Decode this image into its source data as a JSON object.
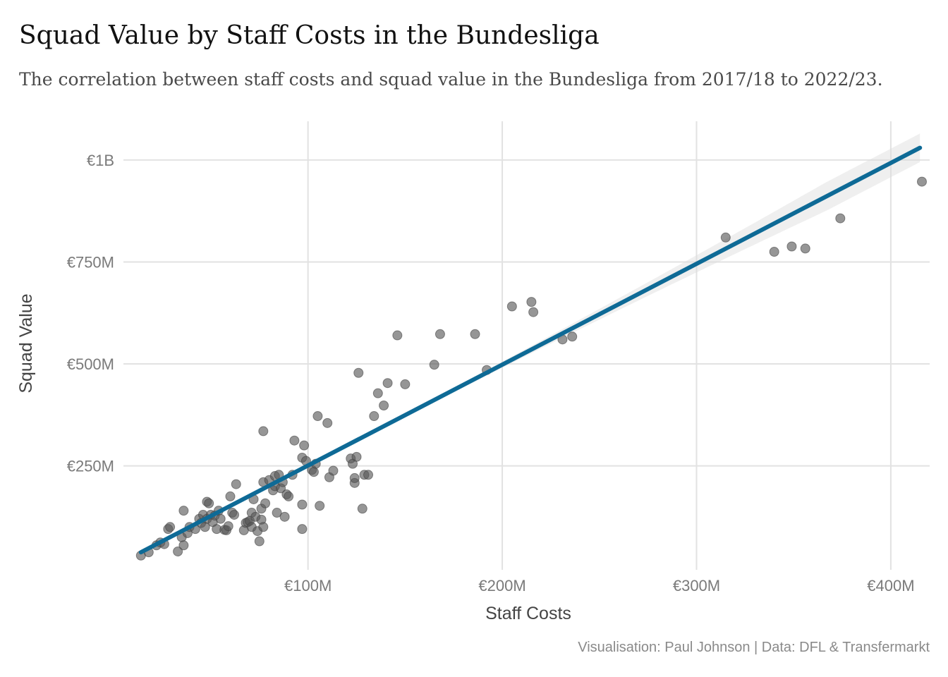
{
  "chart_data": {
    "type": "scatter",
    "title": "Squad Value by Staff Costs in the Bundesliga",
    "subtitle": "The correlation between staff costs and squad value in the Bundesliga from 2017/18 to 2022/23.",
    "caption": "Visualisation: Paul Johnson | Data: DFL & Transfermarkt",
    "xlabel": "Staff Costs",
    "ylabel": "Squad Value",
    "units": "millions EUR",
    "xlim": [
      5,
      420
    ],
    "ylim": [
      -5,
      1095
    ],
    "x_ticks": [
      {
        "value": 100,
        "label": "€100M"
      },
      {
        "value": 200,
        "label": "€200M"
      },
      {
        "value": 300,
        "label": "€300M"
      },
      {
        "value": 400,
        "label": "€400M"
      }
    ],
    "y_ticks": [
      {
        "value": 250,
        "label": "€250M"
      },
      {
        "value": 500,
        "label": "€500M"
      },
      {
        "value": 750,
        "label": "€750M"
      },
      {
        "value": 1000,
        "label": "€1B"
      }
    ],
    "trend_line": {
      "x": [
        14,
        415
      ],
      "y": [
        38,
        1030
      ],
      "color": "#0e6a96",
      "ci_color": "#dcdcdc"
    },
    "points": [
      {
        "x": 14,
        "y": 30
      },
      {
        "x": 18,
        "y": 38
      },
      {
        "x": 22,
        "y": 55
      },
      {
        "x": 24,
        "y": 62
      },
      {
        "x": 26,
        "y": 58
      },
      {
        "x": 28,
        "y": 95
      },
      {
        "x": 29,
        "y": 100
      },
      {
        "x": 33,
        "y": 40
      },
      {
        "x": 35,
        "y": 75
      },
      {
        "x": 36,
        "y": 55
      },
      {
        "x": 36,
        "y": 140
      },
      {
        "x": 38,
        "y": 85
      },
      {
        "x": 39,
        "y": 100
      },
      {
        "x": 42,
        "y": 95
      },
      {
        "x": 44,
        "y": 120
      },
      {
        "x": 45,
        "y": 110
      },
      {
        "x": 46,
        "y": 130
      },
      {
        "x": 47,
        "y": 100
      },
      {
        "x": 48,
        "y": 120
      },
      {
        "x": 48,
        "y": 162
      },
      {
        "x": 49,
        "y": 158
      },
      {
        "x": 50,
        "y": 130
      },
      {
        "x": 51,
        "y": 112
      },
      {
        "x": 52,
        "y": 128
      },
      {
        "x": 53,
        "y": 95
      },
      {
        "x": 54,
        "y": 140
      },
      {
        "x": 55,
        "y": 120
      },
      {
        "x": 57,
        "y": 93
      },
      {
        "x": 58,
        "y": 92
      },
      {
        "x": 59,
        "y": 102
      },
      {
        "x": 60,
        "y": 175
      },
      {
        "x": 61,
        "y": 135
      },
      {
        "x": 62,
        "y": 130
      },
      {
        "x": 63,
        "y": 205
      },
      {
        "x": 67,
        "y": 92
      },
      {
        "x": 68,
        "y": 110
      },
      {
        "x": 69,
        "y": 112
      },
      {
        "x": 70,
        "y": 115
      },
      {
        "x": 71,
        "y": 100
      },
      {
        "x": 71,
        "y": 135
      },
      {
        "x": 72,
        "y": 168
      },
      {
        "x": 73,
        "y": 125
      },
      {
        "x": 74,
        "y": 90
      },
      {
        "x": 75,
        "y": 65
      },
      {
        "x": 76,
        "y": 145
      },
      {
        "x": 76,
        "y": 118
      },
      {
        "x": 77,
        "y": 100
      },
      {
        "x": 77,
        "y": 210
      },
      {
        "x": 77,
        "y": 335
      },
      {
        "x": 78,
        "y": 158
      },
      {
        "x": 80,
        "y": 215
      },
      {
        "x": 82,
        "y": 190
      },
      {
        "x": 83,
        "y": 200
      },
      {
        "x": 83,
        "y": 225
      },
      {
        "x": 84,
        "y": 135
      },
      {
        "x": 85,
        "y": 228
      },
      {
        "x": 86,
        "y": 195
      },
      {
        "x": 87,
        "y": 210
      },
      {
        "x": 88,
        "y": 125
      },
      {
        "x": 89,
        "y": 180
      },
      {
        "x": 90,
        "y": 175
      },
      {
        "x": 92,
        "y": 228
      },
      {
        "x": 93,
        "y": 312
      },
      {
        "x": 97,
        "y": 95
      },
      {
        "x": 97,
        "y": 155
      },
      {
        "x": 97,
        "y": 270
      },
      {
        "x": 98,
        "y": 300
      },
      {
        "x": 99,
        "y": 262
      },
      {
        "x": 102,
        "y": 240
      },
      {
        "x": 103,
        "y": 235
      },
      {
        "x": 104,
        "y": 255
      },
      {
        "x": 105,
        "y": 372
      },
      {
        "x": 106,
        "y": 152
      },
      {
        "x": 110,
        "y": 355
      },
      {
        "x": 111,
        "y": 222
      },
      {
        "x": 113,
        "y": 238
      },
      {
        "x": 122,
        "y": 268
      },
      {
        "x": 123,
        "y": 255
      },
      {
        "x": 124,
        "y": 208
      },
      {
        "x": 124,
        "y": 220
      },
      {
        "x": 125,
        "y": 272
      },
      {
        "x": 126,
        "y": 478
      },
      {
        "x": 128,
        "y": 145
      },
      {
        "x": 129,
        "y": 228
      },
      {
        "x": 131,
        "y": 228
      },
      {
        "x": 134,
        "y": 372
      },
      {
        "x": 136,
        "y": 428
      },
      {
        "x": 139,
        "y": 398
      },
      {
        "x": 141,
        "y": 453
      },
      {
        "x": 146,
        "y": 570
      },
      {
        "x": 150,
        "y": 450
      },
      {
        "x": 165,
        "y": 498
      },
      {
        "x": 168,
        "y": 573
      },
      {
        "x": 186,
        "y": 573
      },
      {
        "x": 192,
        "y": 485
      },
      {
        "x": 205,
        "y": 641
      },
      {
        "x": 215,
        "y": 652
      },
      {
        "x": 216,
        "y": 627
      },
      {
        "x": 231,
        "y": 560
      },
      {
        "x": 236,
        "y": 567
      },
      {
        "x": 315,
        "y": 810
      },
      {
        "x": 340,
        "y": 775
      },
      {
        "x": 349,
        "y": 788
      },
      {
        "x": 356,
        "y": 783
      },
      {
        "x": 374,
        "y": 857
      },
      {
        "x": 416,
        "y": 947
      }
    ]
  }
}
